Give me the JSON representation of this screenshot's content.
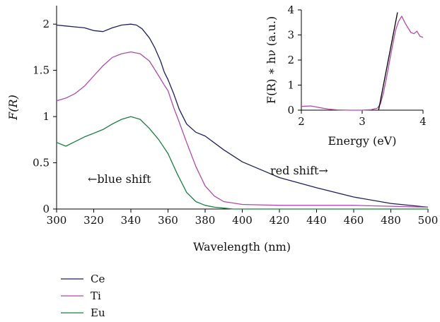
{
  "chart_data": [
    {
      "type": "line",
      "xlabel": "Wavelength (nm)",
      "ylabel": "F(R)",
      "xlim": [
        300,
        500
      ],
      "ylim": [
        0,
        2.2
      ],
      "xticks": [
        "300",
        "320",
        "340",
        "360",
        "380",
        "400",
        "420",
        "440",
        "460",
        "480",
        "500"
      ],
      "yticks": [
        "0",
        "0.5",
        "1",
        "1.5",
        "2"
      ],
      "annotations": [
        "←blue shift",
        "red shift→"
      ],
      "legend_placement": "below-left",
      "series": [
        {
          "name": "Ce",
          "color": "#1f1f5e",
          "x": [
            300,
            305,
            310,
            315,
            320,
            325,
            330,
            335,
            340,
            343,
            346,
            350,
            353,
            356,
            358,
            360,
            363,
            366,
            370,
            375,
            380,
            390,
            400,
            420,
            440,
            460,
            480,
            500
          ],
          "y": [
            1.99,
            1.98,
            1.97,
            1.96,
            1.93,
            1.92,
            1.96,
            1.99,
            2.0,
            1.99,
            1.95,
            1.85,
            1.74,
            1.6,
            1.48,
            1.4,
            1.25,
            1.08,
            0.92,
            0.83,
            0.79,
            0.64,
            0.51,
            0.34,
            0.23,
            0.13,
            0.06,
            0.02
          ]
        },
        {
          "name": "Ti",
          "color": "#b04aa8",
          "x": [
            300,
            305,
            310,
            315,
            320,
            325,
            330,
            335,
            340,
            345,
            350,
            355,
            358,
            360,
            363,
            366,
            370,
            375,
            380,
            385,
            390,
            400,
            420,
            440,
            460,
            480,
            500
          ],
          "y": [
            1.17,
            1.2,
            1.25,
            1.33,
            1.44,
            1.55,
            1.64,
            1.68,
            1.7,
            1.68,
            1.6,
            1.44,
            1.34,
            1.28,
            1.1,
            0.94,
            0.72,
            0.46,
            0.25,
            0.14,
            0.08,
            0.05,
            0.04,
            0.04,
            0.04,
            0.03,
            0.02
          ]
        },
        {
          "name": "Eu",
          "color": "#1a8040",
          "x": [
            300,
            305,
            310,
            315,
            320,
            325,
            330,
            335,
            340,
            345,
            350,
            355,
            360,
            365,
            370,
            375,
            380,
            385,
            390,
            395,
            400,
            420,
            440,
            460,
            480,
            500
          ],
          "y": [
            0.72,
            0.68,
            0.73,
            0.78,
            0.82,
            0.86,
            0.92,
            0.97,
            1.0,
            0.97,
            0.87,
            0.75,
            0.6,
            0.38,
            0.18,
            0.08,
            0.04,
            0.02,
            0.01,
            0.0,
            0.0,
            0.0,
            0.0,
            0.0,
            0.0,
            0.0
          ]
        }
      ]
    },
    {
      "type": "line",
      "xlabel": "Energy (eV)",
      "ylabel": "F(R) ∗ hν (a.u.)",
      "xlim": [
        2,
        4
      ],
      "ylim": [
        0,
        4
      ],
      "xticks": [
        "2",
        "3",
        "4"
      ],
      "yticks": [
        "0",
        "1",
        "2",
        "3",
        "4"
      ],
      "series": [
        {
          "color": "#b04aa8",
          "x": [
            2.0,
            2.15,
            2.3,
            2.45,
            2.6,
            2.8,
            3.0,
            3.15,
            3.25,
            3.3,
            3.35,
            3.4,
            3.45,
            3.5,
            3.55,
            3.6,
            3.65,
            3.7,
            3.75,
            3.8,
            3.85,
            3.9,
            3.95,
            4.0
          ],
          "y": [
            0.15,
            0.17,
            0.1,
            0.04,
            0.01,
            0.0,
            0.0,
            0.02,
            0.08,
            0.25,
            0.7,
            1.3,
            1.95,
            2.6,
            3.2,
            3.55,
            3.75,
            3.5,
            3.3,
            3.1,
            3.05,
            3.15,
            2.95,
            2.9
          ]
        },
        {
          "color": "#000000",
          "x": [
            3.27,
            3.58
          ],
          "y": [
            0.0,
            3.9
          ]
        }
      ]
    }
  ]
}
